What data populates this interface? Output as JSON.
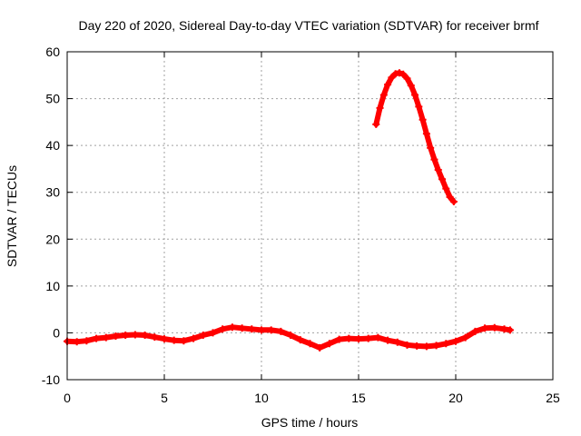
{
  "chart_data": {
    "type": "scatter",
    "title": "Day 220 of 2020, Sidereal Day-to-day VTEC variation (SDTVAR) for receiver brmf",
    "xlabel": "GPS time / hours",
    "ylabel": "SDTVAR / TECUs",
    "xlim": [
      0,
      25
    ],
    "ylim": [
      -10,
      60
    ],
    "xticks": [
      0,
      5,
      10,
      15,
      20,
      25
    ],
    "yticks": [
      -10,
      0,
      10,
      20,
      30,
      40,
      50,
      60
    ],
    "grid": true,
    "marker": "plus",
    "series": [
      {
        "name": "SDTVAR (low arc)",
        "color": "#ff0000",
        "x": [
          0.0,
          0.5,
          1.0,
          1.5,
          2.0,
          2.5,
          3.0,
          3.5,
          4.0,
          4.5,
          5.0,
          5.5,
          6.0,
          6.5,
          7.0,
          7.5,
          8.0,
          8.5,
          9.0,
          9.5,
          10.0,
          10.5,
          11.0,
          11.5,
          12.0,
          12.5,
          13.0,
          13.5,
          14.0,
          14.5,
          15.0,
          15.5,
          16.0,
          16.5,
          17.0,
          17.5,
          18.0,
          18.5,
          19.0,
          19.5,
          20.0,
          20.5,
          21.0,
          21.5,
          22.0,
          22.5,
          22.8
        ],
        "values": [
          -1.8,
          -1.9,
          -1.7,
          -1.2,
          -1.0,
          -0.7,
          -0.5,
          -0.4,
          -0.5,
          -0.9,
          -1.3,
          -1.6,
          -1.7,
          -1.2,
          -0.5,
          0.0,
          0.8,
          1.2,
          1.0,
          0.8,
          0.6,
          0.6,
          0.3,
          -0.5,
          -1.5,
          -2.3,
          -3.2,
          -2.3,
          -1.4,
          -1.2,
          -1.3,
          -1.2,
          -1.0,
          -1.6,
          -2.0,
          -2.6,
          -2.8,
          -2.9,
          -2.7,
          -2.3,
          -1.8,
          -1.0,
          0.3,
          1.0,
          1.1,
          0.8,
          0.6
        ]
      },
      {
        "name": "SDTVAR (high arc)",
        "color": "#ff0000",
        "x": [
          15.9,
          16.1,
          16.3,
          16.5,
          16.7,
          16.9,
          17.1,
          17.3,
          17.5,
          17.7,
          17.9,
          18.1,
          18.3,
          18.5,
          18.7,
          18.9,
          19.1,
          19.3,
          19.5,
          19.7,
          19.9
        ],
        "values": [
          44.5,
          48.0,
          50.8,
          53.0,
          54.5,
          55.3,
          55.5,
          55.2,
          54.3,
          52.8,
          50.8,
          48.3,
          45.5,
          42.5,
          39.5,
          37.0,
          34.8,
          32.8,
          30.8,
          29.0,
          28.0
        ]
      }
    ]
  }
}
